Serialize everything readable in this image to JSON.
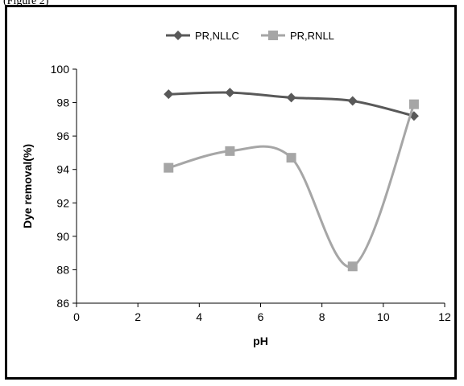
{
  "caption_fragment": "(Figure 2)",
  "chart_data": {
    "type": "line",
    "title": "",
    "xlabel": "pH",
    "ylabel": "Dye removal(%)",
    "xlim": [
      0,
      12
    ],
    "ylim": [
      86,
      100
    ],
    "xticks": [
      0,
      2,
      4,
      6,
      8,
      10,
      12
    ],
    "yticks": [
      86,
      88,
      90,
      92,
      94,
      96,
      98,
      100
    ],
    "grid": false,
    "legend_position": "top",
    "series": [
      {
        "name": "PR,NLLC",
        "marker": "diamond",
        "color": "#595959",
        "x": [
          3,
          5,
          7,
          9,
          11
        ],
        "y": [
          98.5,
          98.6,
          98.3,
          98.1,
          97.2
        ]
      },
      {
        "name": "PR,RNLL",
        "marker": "square",
        "color": "#a6a6a6",
        "x": [
          3,
          5,
          7,
          9,
          11
        ],
        "y": [
          94.1,
          95.1,
          94.7,
          88.2,
          97.9
        ]
      }
    ]
  }
}
